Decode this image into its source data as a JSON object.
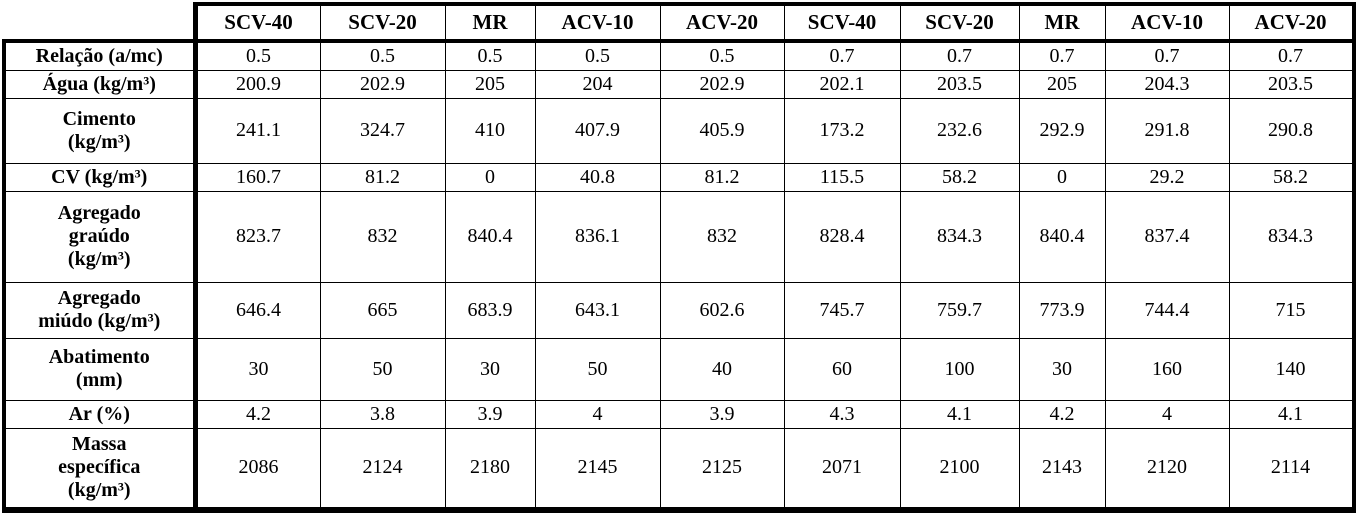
{
  "chart_data": {
    "type": "table",
    "columns": [
      "SCV-40",
      "SCV-20",
      "MR",
      "ACV-10",
      "ACV-20",
      "SCV-40",
      "SCV-20",
      "MR",
      "ACV-10",
      "ACV-20"
    ],
    "rows": [
      {
        "label": "Relação (a/mc)",
        "values": [
          "0.5",
          "0.5",
          "0.5",
          "0.5",
          "0.5",
          "0.7",
          "0.7",
          "0.7",
          "0.7",
          "0.7"
        ]
      },
      {
        "label": "Água (kg/m³)",
        "values": [
          "200.9",
          "202.9",
          "205",
          "204",
          "202.9",
          "202.1",
          "203.5",
          "205",
          "204.3",
          "203.5"
        ]
      },
      {
        "label": "Cimento\n(kg/m³)",
        "values": [
          "241.1",
          "324.7",
          "410",
          "407.9",
          "405.9",
          "173.2",
          "232.6",
          "292.9",
          "291.8",
          "290.8"
        ]
      },
      {
        "label": "CV (kg/m³)",
        "values": [
          "160.7",
          "81.2",
          "0",
          "40.8",
          "81.2",
          "115.5",
          "58.2",
          "0",
          "29.2",
          "58.2"
        ]
      },
      {
        "label": "Agregado\ngraúdo\n(kg/m³)",
        "values": [
          "823.7",
          "832",
          "840.4",
          "836.1",
          "832",
          "828.4",
          "834.3",
          "840.4",
          "837.4",
          "834.3"
        ]
      },
      {
        "label": "Agregado\nmiúdo (kg/m³)",
        "values": [
          "646.4",
          "665",
          "683.9",
          "643.1",
          "602.6",
          "745.7",
          "759.7",
          "773.9",
          "744.4",
          "715"
        ]
      },
      {
        "label": "Abatimento\n(mm)",
        "values": [
          "30",
          "50",
          "30",
          "50",
          "40",
          "60",
          "100",
          "30",
          "160",
          "140"
        ]
      },
      {
        "label": "Ar (%)",
        "values": [
          "4.2",
          "3.8",
          "3.9",
          "4",
          "3.9",
          "4.3",
          "4.1",
          "4.2",
          "4",
          "4.1"
        ]
      },
      {
        "label": "Massa\nespecífica\n(kg/m³)",
        "values": [
          "2086",
          "2124",
          "2180",
          "2145",
          "2125",
          "2071",
          "2100",
          "2143",
          "2120",
          "2114"
        ]
      }
    ]
  }
}
